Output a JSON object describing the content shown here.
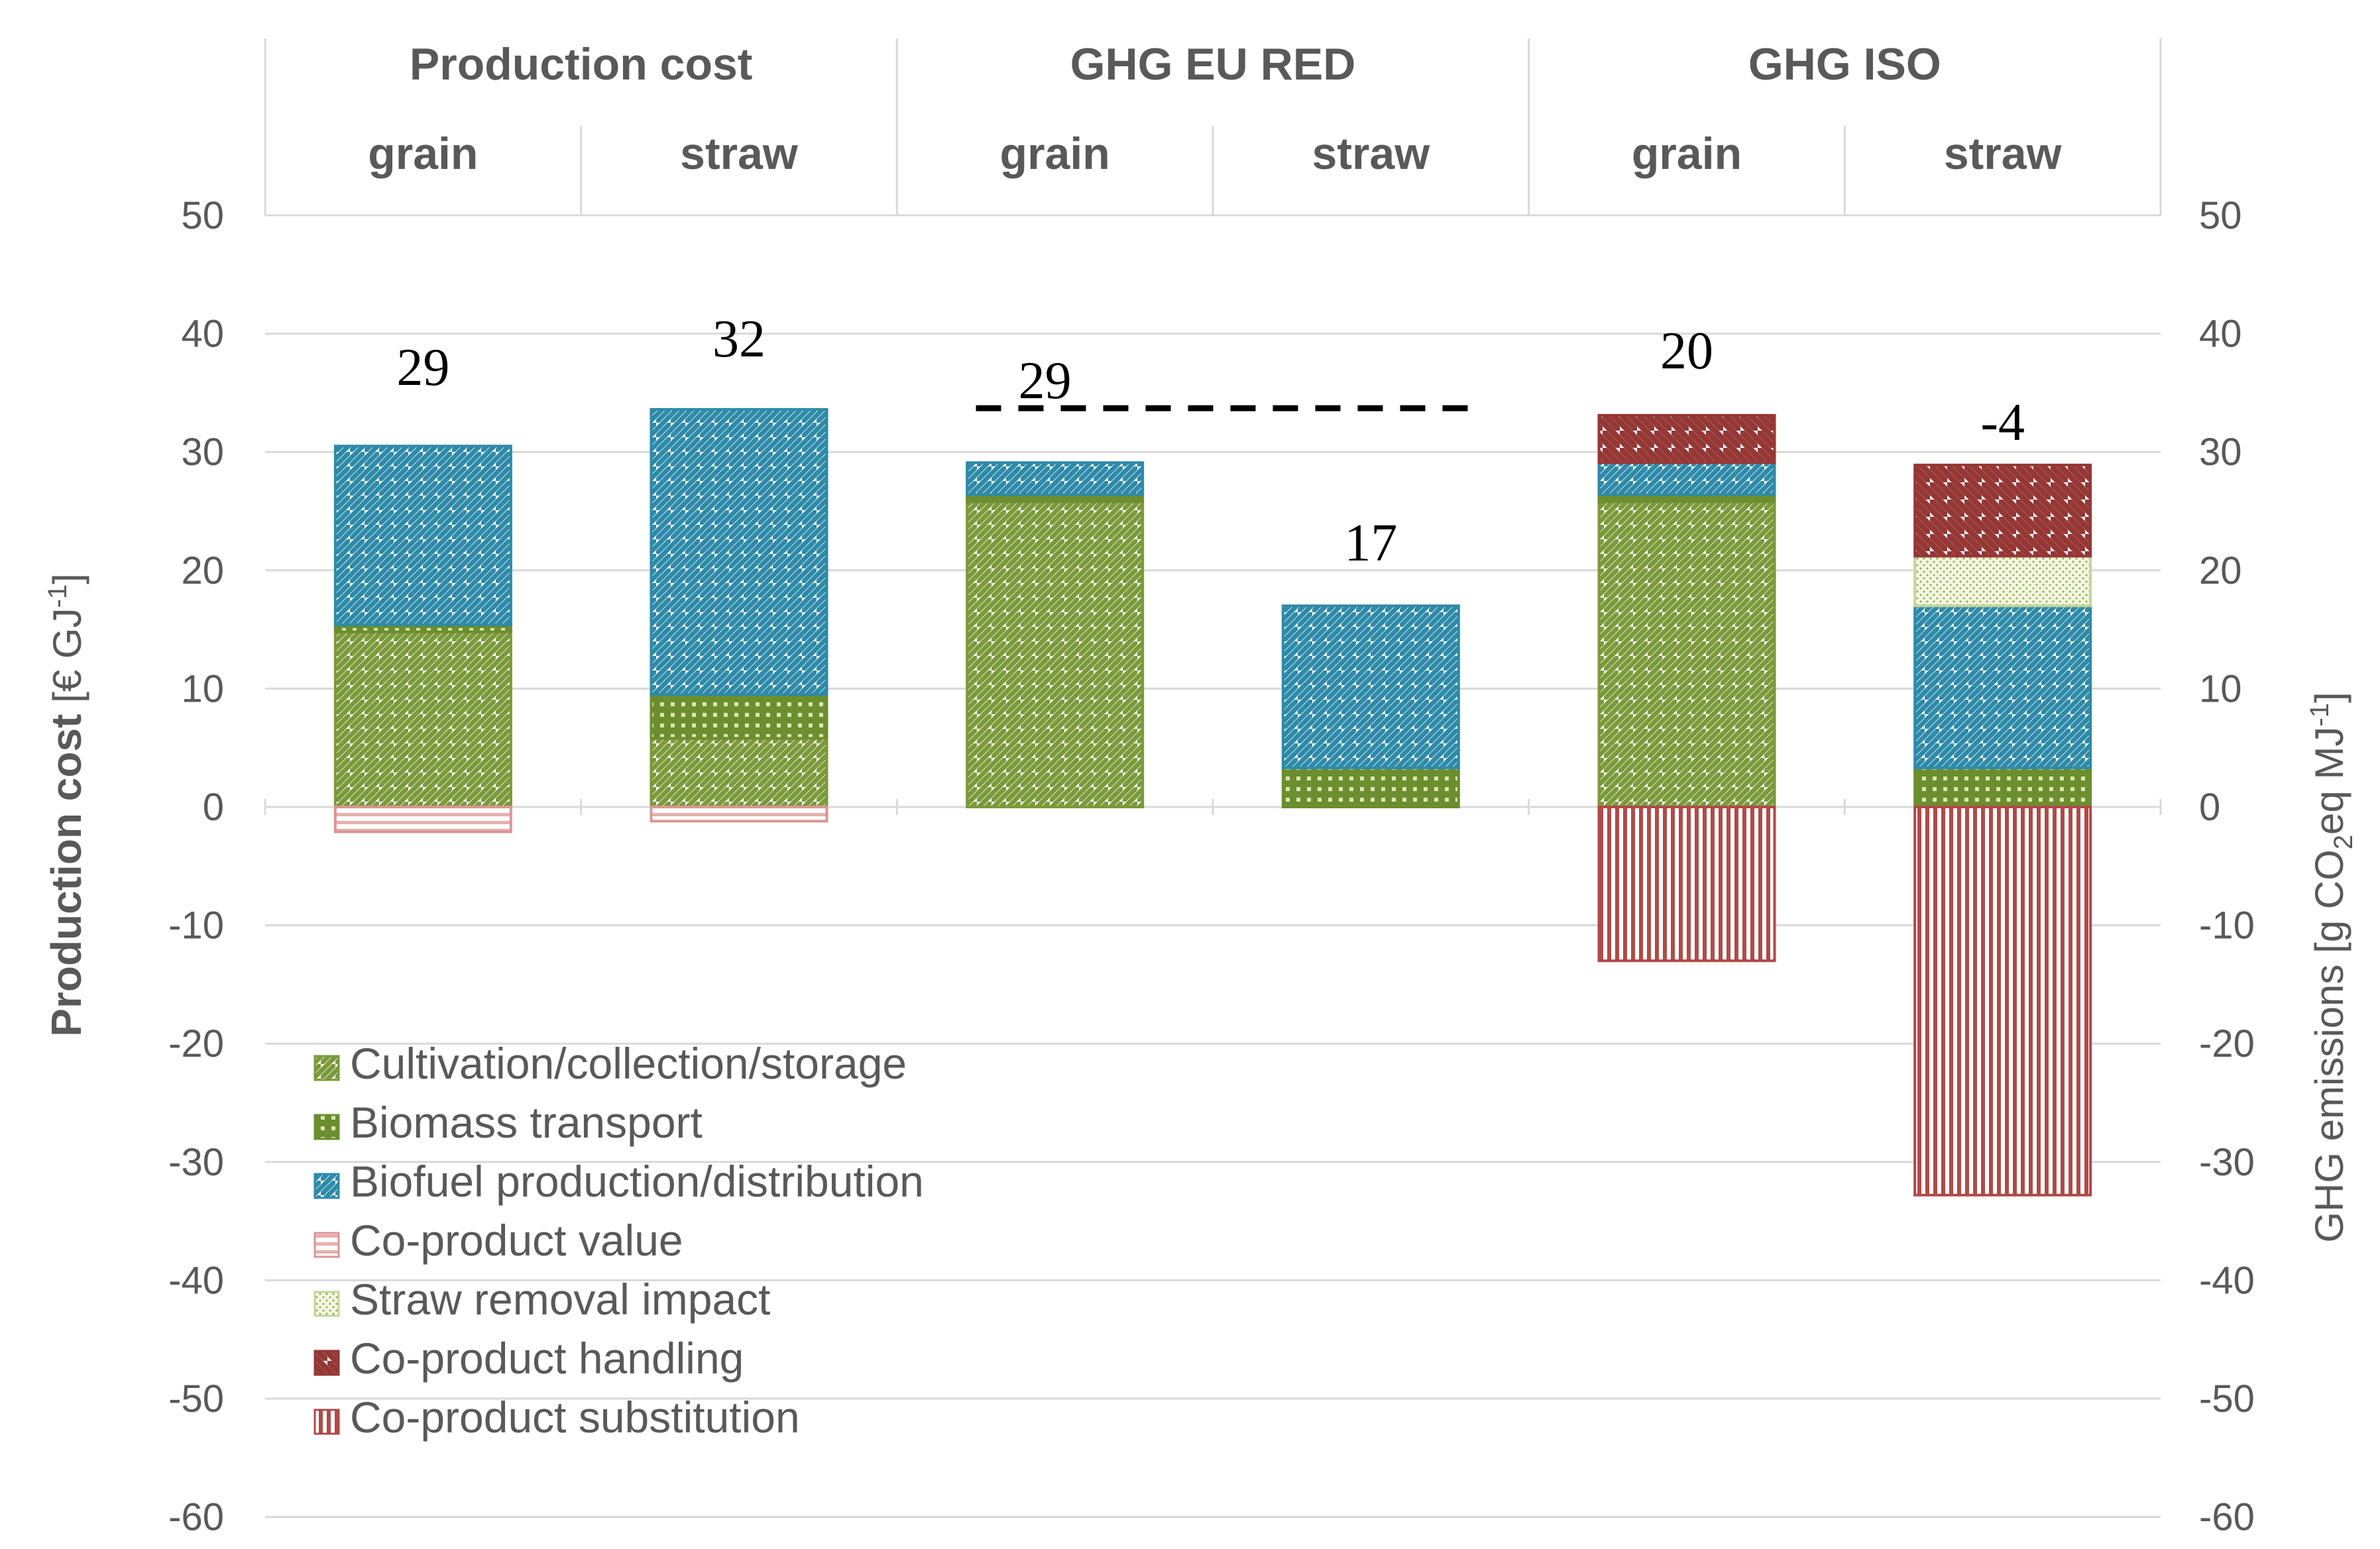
{
  "chart_data": {
    "type": "bar",
    "stacked": true,
    "groups": [
      {
        "label": "Production cost",
        "subcategories": [
          "grain",
          "straw"
        ]
      },
      {
        "label": "GHG EU RED",
        "subcategories": [
          "grain",
          "straw"
        ]
      },
      {
        "label": "GHG ISO",
        "subcategories": [
          "grain",
          "straw"
        ]
      }
    ],
    "categories": [
      "grain",
      "straw",
      "grain",
      "straw",
      "grain",
      "straw"
    ],
    "left_axis": {
      "label_bold": "Production cost",
      "label_unit": "[€ GJ",
      "label_sup": "-1",
      "label_end": "]",
      "ylim": [
        -60,
        50
      ],
      "ticks": [
        "50",
        "40",
        "30",
        "20",
        "10",
        "0",
        "-10",
        "-20",
        "-30",
        "-40",
        "-50",
        "-60"
      ]
    },
    "right_axis": {
      "label_main": "GHG emissions [g CO",
      "label_sub": "2",
      "label_mid": "eq MJ",
      "label_sup": "-1",
      "label_end": "]",
      "ylim": [
        -60,
        50
      ],
      "ticks": [
        "50",
        "40",
        "30",
        "20",
        "10",
        "0",
        "-10",
        "-20",
        "-30",
        "-40",
        "-50",
        "-60"
      ]
    },
    "series": [
      {
        "name": "Cultivation/collection/storage",
        "key": "cultivation",
        "color": "#7a9a3a",
        "values": [
          14.8,
          5.8,
          25.8,
          0,
          25.8,
          0
        ]
      },
      {
        "name": "Biomass transport",
        "key": "transport",
        "color": "#6c8e2e",
        "values": [
          0.6,
          3.7,
          0.6,
          3.3,
          0.6,
          3.3
        ]
      },
      {
        "name": "Biofuel production/distribution",
        "key": "biofuel",
        "color": "#2e8aa8",
        "values": [
          15.1,
          24.1,
          2.7,
          13.7,
          2.7,
          13.7
        ]
      },
      {
        "name": "Co-product value",
        "key": "coproduct_value",
        "color": "#d99694",
        "values": [
          -2.1,
          -1.2,
          0,
          0,
          0,
          0
        ]
      },
      {
        "name": "Straw removal impact",
        "key": "straw_removal",
        "color": "#c3d69b",
        "values": [
          0,
          0,
          0,
          0,
          0,
          4.2
        ]
      },
      {
        "name": "Co-product handling",
        "key": "coproduct_handling",
        "color": "#953735",
        "values": [
          0,
          0,
          0,
          0,
          4.0,
          7.7
        ]
      },
      {
        "name": "Co-product substitution",
        "key": "coproduct_substitution",
        "color": "#b04a48",
        "values": [
          0,
          0,
          0,
          0,
          -13.0,
          -32.8
        ]
      }
    ],
    "totals": [
      "29",
      "32",
      "29",
      "17",
      "20",
      "-4"
    ],
    "reference_line": {
      "value": 33.7,
      "from_category": 2,
      "to_category": 3,
      "style": "dashed"
    }
  }
}
